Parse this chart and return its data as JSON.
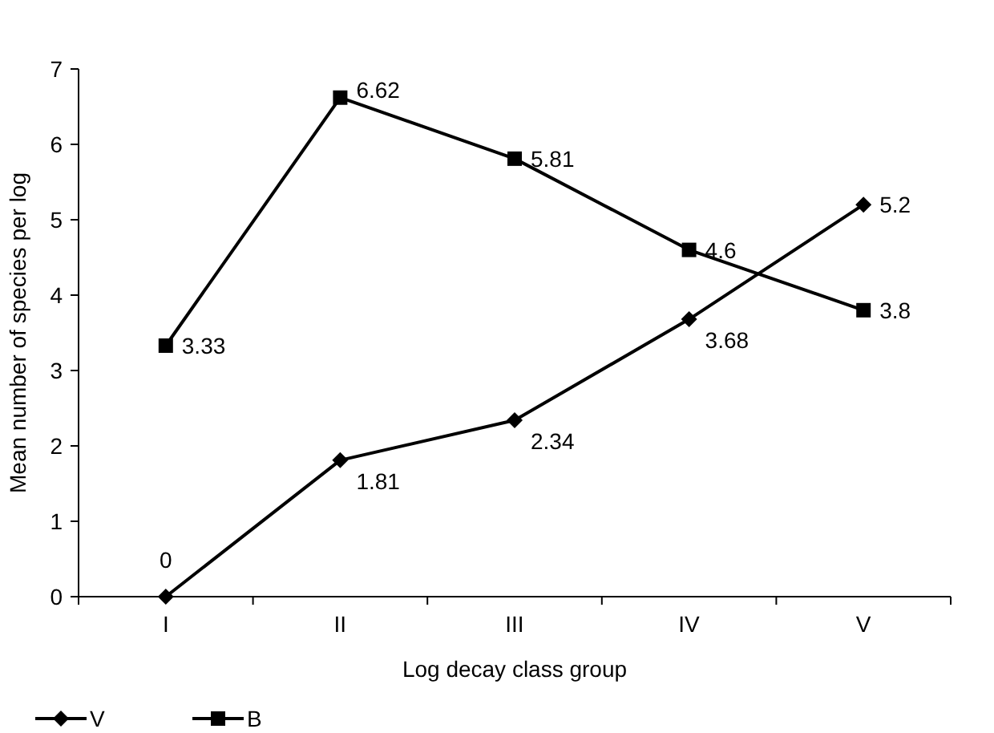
{
  "chart_data": {
    "type": "line",
    "xlabel": "Log decay class group",
    "ylabel": "Mean number of species per log",
    "categories": [
      "I",
      "II",
      "III",
      "IV",
      "V"
    ],
    "series": [
      {
        "name": "V",
        "color": "#000000",
        "marker": "diamond",
        "values": [
          0,
          1.81,
          2.34,
          3.68,
          5.2
        ]
      },
      {
        "name": "B",
        "color": "#000000",
        "marker": "square",
        "values": [
          3.33,
          6.62,
          5.81,
          4.6,
          3.8
        ]
      }
    ],
    "ylim": [
      0,
      7
    ],
    "yticks": [
      0,
      1,
      2,
      3,
      4,
      5,
      6,
      7
    ],
    "data_labels": true,
    "legend": "bottom left",
    "grid": false,
    "line_style": "solid"
  }
}
